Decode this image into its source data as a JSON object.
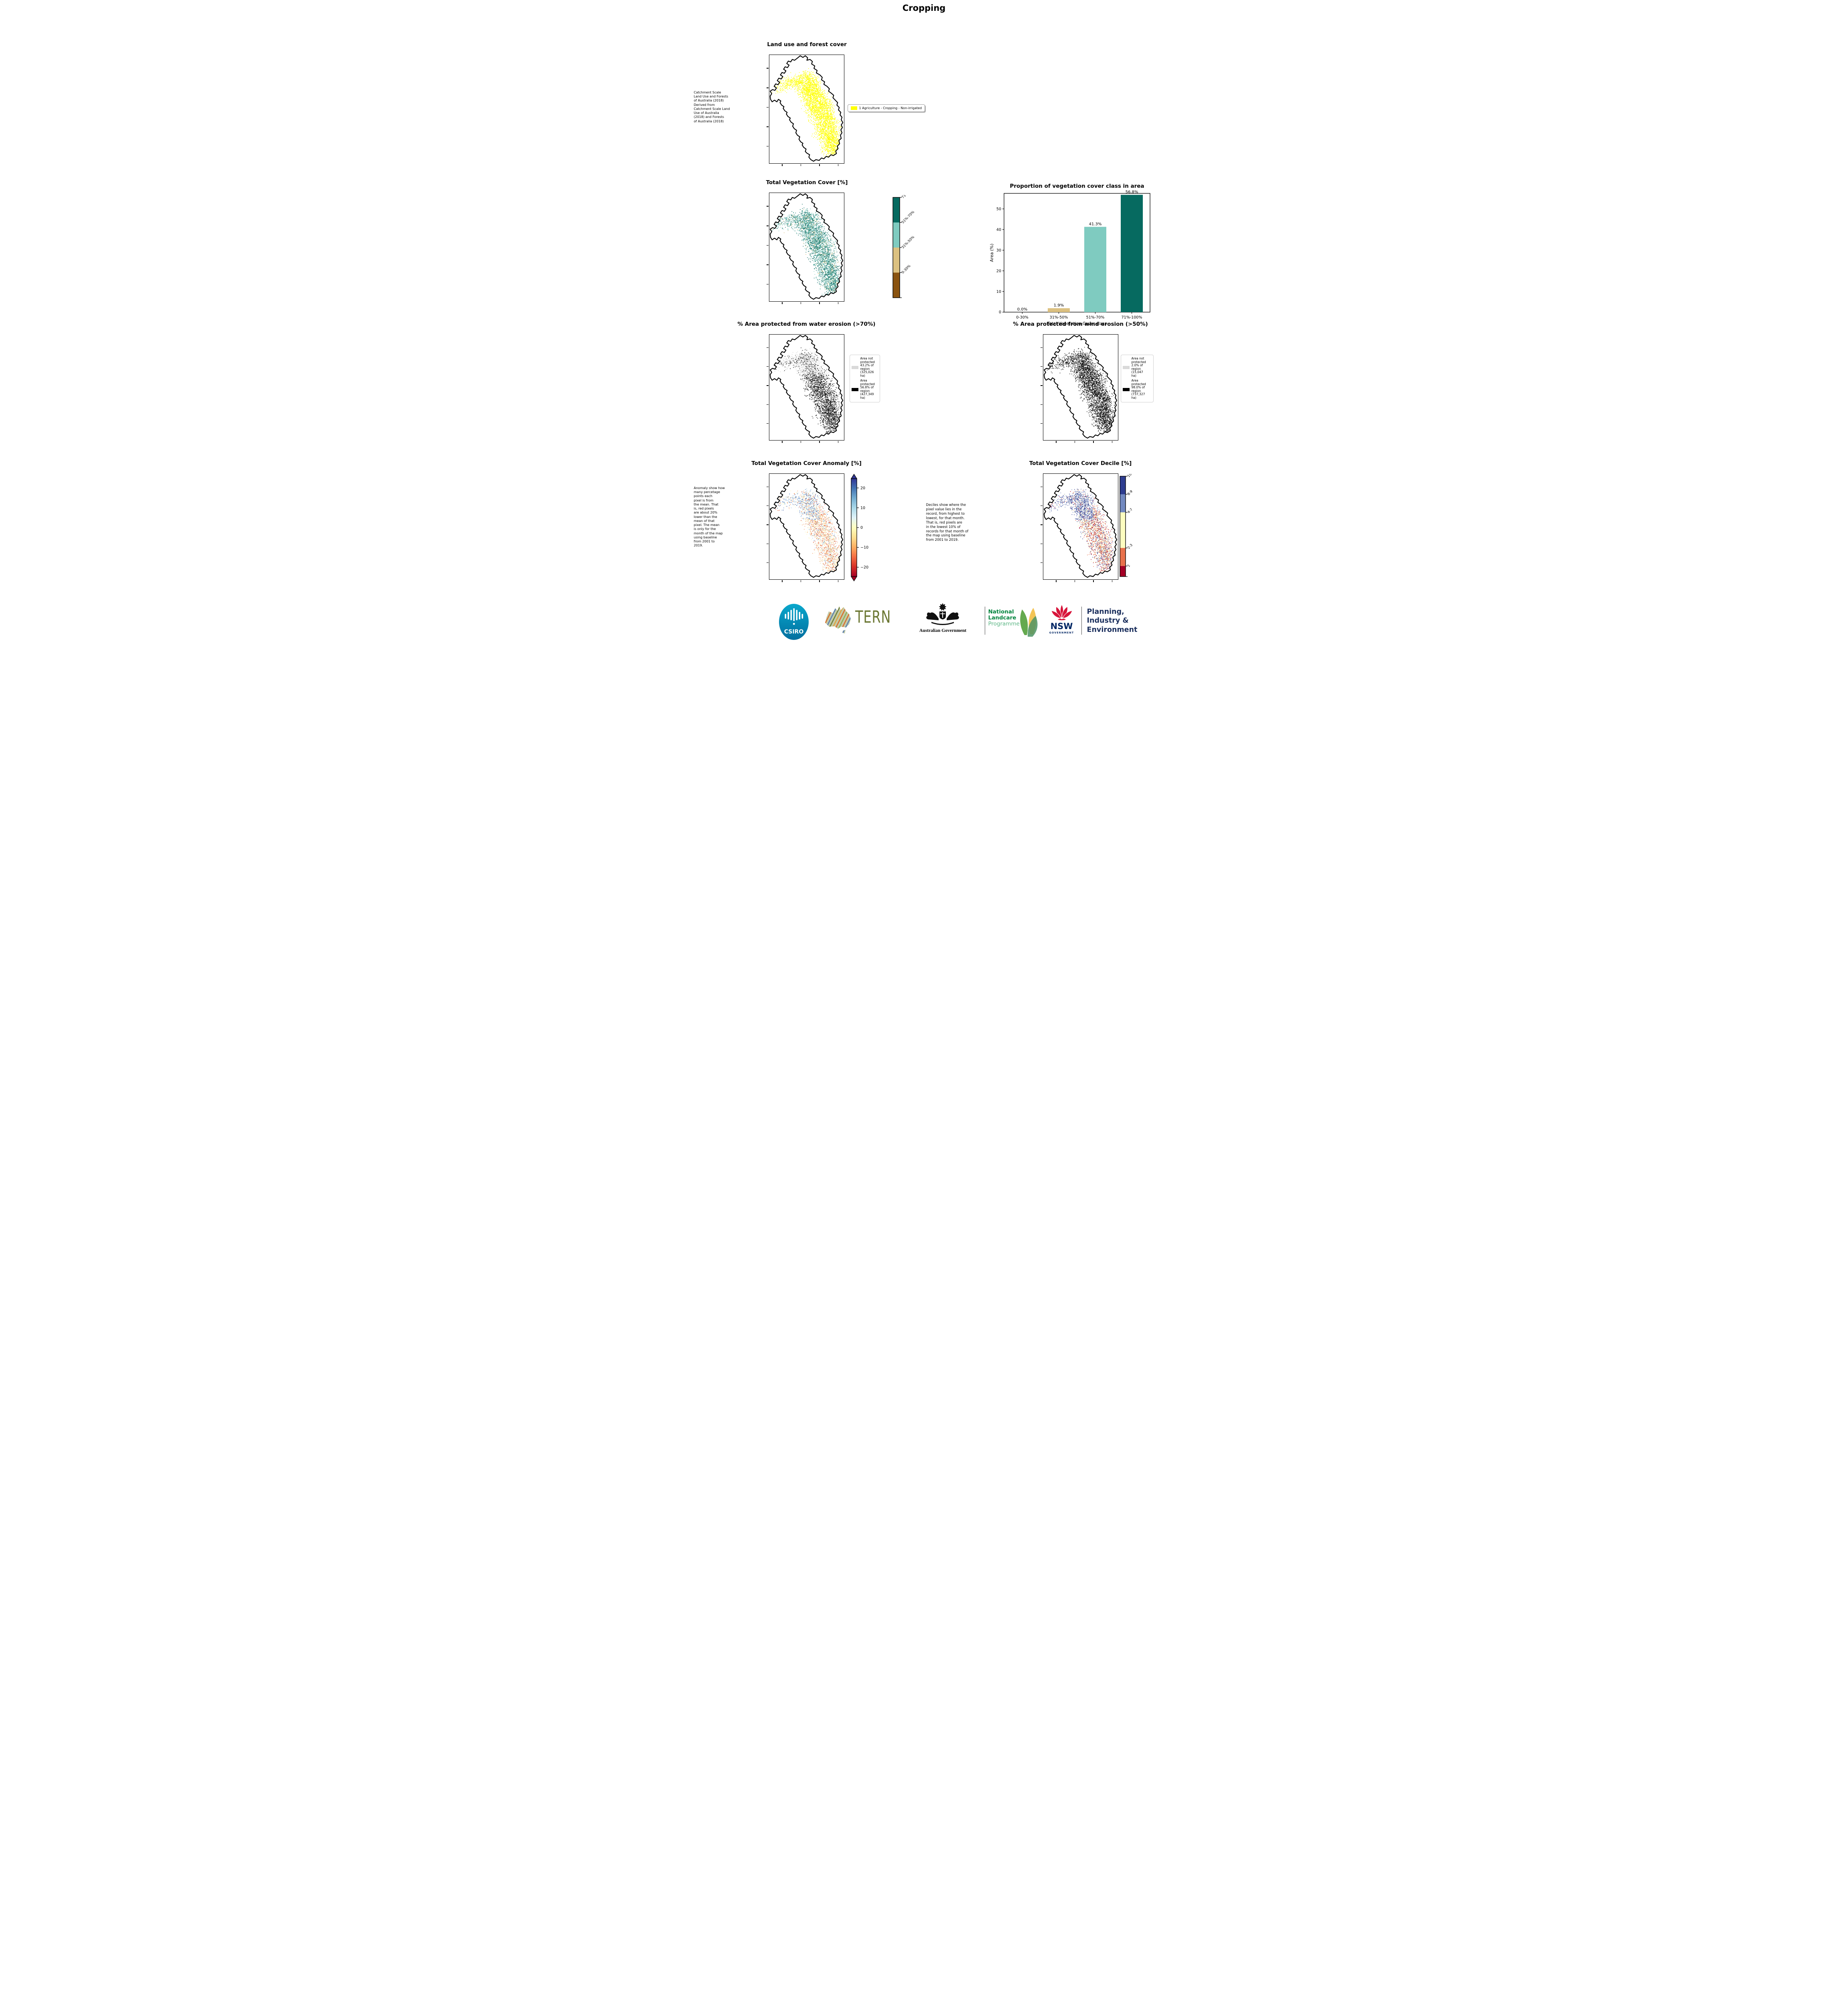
{
  "page": {
    "title": "Cropping"
  },
  "land_use": {
    "title": "Land use and forest cover",
    "side_note": [
      " Catchment Scale",
      "Land Use and Forests",
      "of Australia (2018)",
      "Derived from",
      "Catchment Scale Land",
      "Use of Australia",
      "(2018) and Forests",
      "of Australia (2018)"
    ],
    "legend_label": "1 Agriculture - Cropping - Non-irrigated",
    "pixel_color": "#ffff00"
  },
  "veg_cover": {
    "title": "Total Vegetation Cover [%]",
    "colorbar": {
      "labels": [
        "71%-100%",
        "51%-70%",
        "31%-50%",
        "0-30%"
      ],
      "colors": [
        "#066a60",
        "#7fcbc0",
        "#dcc181",
        "#8a5310"
      ],
      "fractions": [
        0.25,
        0.25,
        0.25,
        0.25
      ]
    }
  },
  "chart_data": {
    "type": "bar",
    "title": "Proportion of vegetation cover class in area",
    "categories": [
      "0-30%",
      "31%-50%",
      "51%-70%",
      "71%-100%"
    ],
    "values": [
      0.0,
      1.9,
      41.3,
      56.8
    ],
    "bar_labels": [
      "0.0%",
      "1.9%",
      "41.3%",
      "56.8%"
    ],
    "bar_colors": [
      "#8a5310",
      "#dcc181",
      "#7fcbc0",
      "#066a60"
    ],
    "xlabel": "Total Vegetation Cover class",
    "ylabel": "Area (%)",
    "ylim": [
      0,
      57.5
    ],
    "yticks": [
      0,
      10,
      20,
      30,
      40,
      50
    ],
    "grid": false,
    "legend_position": "none"
  },
  "water_erosion": {
    "title": "% Area protected from water erosion (>70%)",
    "legend": {
      "not_protected": {
        "color": "#d9d9d9",
        "lines": [
          "Area not",
          "protected",
          "43.2% of",
          "region",
          "(325,026",
          "ha)"
        ]
      },
      "protected": {
        "color": "#000000",
        "lines": [
          "Area",
          "protected",
          "56.8% of",
          "region",
          "(427,349",
          "ha)"
        ]
      }
    }
  },
  "wind_erosion": {
    "title": "% Area protected from wind erosion (>50%)",
    "legend": {
      "not_protected": {
        "color": "#d9d9d9",
        "lines": [
          "Area not",
          "protected",
          "2.0% of",
          "region",
          "(15,047",
          "ha)"
        ]
      },
      "protected": {
        "color": "#000000",
        "lines": [
          "Area",
          "protected",
          "98.0% of",
          "region",
          "(737,327",
          "ha)"
        ]
      }
    }
  },
  "anomaly": {
    "title": "Total Vegetation Cover Anomaly [%]",
    "side_note": [
      "Anomaly show how",
      "many percetage",
      "points each",
      "pixel is from",
      "the mean. That",
      "is, red pixels",
      "are about 20%",
      "lower than the",
      "mean of that",
      "pixel. The mean",
      "is only for the",
      "month of the map",
      "using baseline",
      "from 2001 to",
      "2019."
    ],
    "colorbar": {
      "tick_labels": [
        "20",
        "10",
        "0",
        "−10",
        "−20"
      ],
      "tick_values": [
        20,
        10,
        0,
        -10,
        -20
      ],
      "range": [
        -24.7,
        24.7
      ],
      "gradient": [
        "#a50026",
        "#d73027",
        "#f46d43",
        "#fdae61",
        "#fee090",
        "#ffffbf",
        "#e0f3f8",
        "#abd9e9",
        "#74add1",
        "#4575b4",
        "#313695"
      ]
    }
  },
  "decile": {
    "title": "Total Vegetation Cover Decile [%]",
    "note": [
      "Deciles show where the",
      "pixel value lies in the",
      "record, from highest to",
      "lowest, for that month.",
      "That is, red pixels are",
      "in the lowest 10% of",
      "records for that month of",
      "the map using baseline",
      "from 2001 to 2019."
    ],
    "colorbar": {
      "labels": [
        "10",
        "8-9",
        "4-7",
        "2-3",
        "1"
      ],
      "colors": [
        "#2e3d90",
        "#7289c0",
        "#fdfdc0",
        "#e8714b",
        "#a50026"
      ],
      "fractions": [
        0.18,
        0.18,
        0.355,
        0.18,
        0.105
      ]
    }
  },
  "footer": {
    "csiro": "CSIRO",
    "tern": "TERN",
    "aus_gov": "Australian Government",
    "landcare_bold": [
      "National",
      "Landcare"
    ],
    "landcare_light": "Programme",
    "nsw": "NSW",
    "nsw_sub": "GOVERNMENT",
    "planning_lines": [
      "Planning,",
      "Industry &",
      "Environment"
    ]
  }
}
